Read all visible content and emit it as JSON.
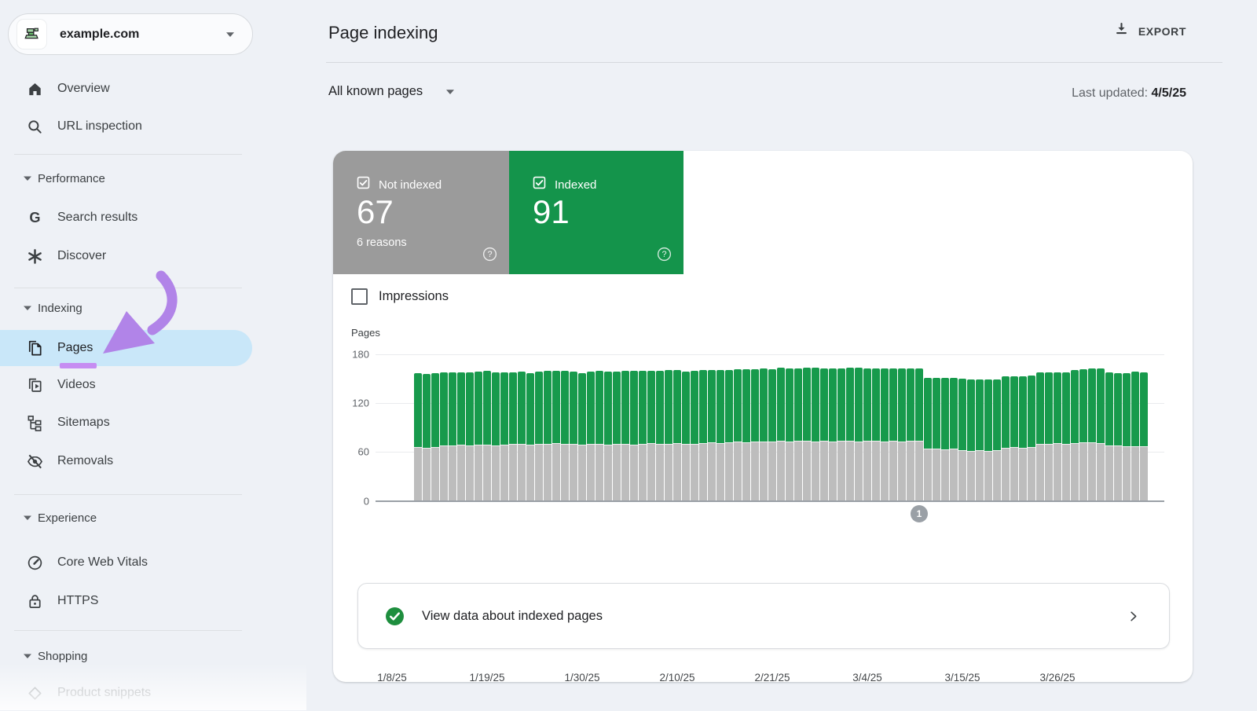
{
  "property": {
    "domain": "example.com",
    "favicon": "press-favicon-icon"
  },
  "sidebar": {
    "items": [
      {
        "type": "item",
        "label": "Overview",
        "icon": "home-icon"
      },
      {
        "type": "item",
        "label": "URL inspection",
        "icon": "search-icon"
      },
      {
        "type": "divider"
      },
      {
        "type": "section",
        "label": "Performance",
        "icon": "chevron-down-icon"
      },
      {
        "type": "item",
        "label": "Search results",
        "icon": "google-g-icon"
      },
      {
        "type": "item",
        "label": "Discover",
        "icon": "discover-icon"
      },
      {
        "type": "divider"
      },
      {
        "type": "section",
        "label": "Indexing",
        "icon": "chevron-down-icon"
      },
      {
        "type": "item",
        "label": "Pages",
        "icon": "pages-icon",
        "active": true,
        "underlined": true
      },
      {
        "type": "item",
        "label": "Videos",
        "icon": "videos-icon"
      },
      {
        "type": "item",
        "label": "Sitemaps",
        "icon": "sitemaps-icon"
      },
      {
        "type": "item",
        "label": "Removals",
        "icon": "removals-icon"
      },
      {
        "type": "divider"
      },
      {
        "type": "section",
        "label": "Experience",
        "icon": "chevron-down-icon"
      },
      {
        "type": "item",
        "label": "Core Web Vitals",
        "icon": "gauge-icon"
      },
      {
        "type": "item",
        "label": "HTTPS",
        "icon": "lock-icon"
      },
      {
        "type": "divider"
      },
      {
        "type": "section",
        "label": "Shopping",
        "icon": "chevron-down-icon"
      },
      {
        "type": "item",
        "label": "Product snippets",
        "icon": "diamond-icon",
        "faded": true
      }
    ]
  },
  "header": {
    "title": "Page indexing",
    "export_label": "EXPORT"
  },
  "filters": {
    "selected": "All known pages",
    "last_updated_label": "Last updated:",
    "last_updated_value": "4/5/25"
  },
  "summary_cards": [
    {
      "label": "Not indexed",
      "value": "67",
      "sub": "6 reasons",
      "color": "#9b9b9b"
    },
    {
      "label": "Indexed",
      "value": "91",
      "sub": "",
      "color": "#14944b"
    }
  ],
  "controls": {
    "impressions_label": "Impressions"
  },
  "chart_data": {
    "type": "bar",
    "stacked": true,
    "title": "",
    "ylabel": "Pages",
    "yticks": [
      0,
      60,
      120,
      180
    ],
    "ylim": [
      0,
      186
    ],
    "grid": "horizontal",
    "legend": "none",
    "x_range": {
      "start": "1/11/25",
      "end": "4/5/25",
      "points": 85
    },
    "xtick_labels": [
      "1/8/25",
      "1/19/25",
      "1/30/25",
      "2/10/25",
      "2/21/25",
      "3/4/25",
      "3/15/25",
      "3/26/25"
    ],
    "xtick_day_index": [
      -3,
      8,
      19,
      30,
      41,
      52,
      63,
      74
    ],
    "series": [
      {
        "name": "Not indexed",
        "color": "#bdbdbd",
        "values": [
          66,
          65,
          66,
          68,
          68,
          69,
          68,
          69,
          69,
          68,
          69,
          70,
          70,
          69,
          70,
          70,
          71,
          70,
          70,
          69,
          70,
          70,
          69,
          70,
          70,
          69,
          70,
          71,
          70,
          70,
          71,
          70,
          70,
          71,
          72,
          71,
          72,
          73,
          72,
          73,
          73,
          73,
          74,
          73,
          74,
          74,
          73,
          74,
          73,
          74,
          74,
          73,
          74,
          74,
          73,
          74,
          73,
          74,
          74,
          64,
          64,
          63,
          64,
          62,
          61,
          62,
          61,
          62,
          65,
          66,
          65,
          66,
          70,
          70,
          71,
          70,
          71,
          72,
          72,
          71,
          68,
          68,
          67,
          67,
          67
        ]
      },
      {
        "name": "Indexed",
        "color": "#179a4c",
        "values": [
          91,
          91,
          91,
          90,
          90,
          89,
          90,
          90,
          91,
          90,
          89,
          88,
          89,
          88,
          89,
          90,
          89,
          90,
          89,
          88,
          89,
          90,
          90,
          89,
          90,
          91,
          90,
          89,
          90,
          91,
          90,
          89,
          90,
          90,
          89,
          90,
          89,
          89,
          90,
          89,
          90,
          89,
          90,
          90,
          89,
          90,
          91,
          89,
          90,
          89,
          90,
          91,
          89,
          89,
          90,
          89,
          90,
          89,
          89,
          87,
          87,
          88,
          87,
          88,
          88,
          87,
          88,
          87,
          88,
          87,
          88,
          88,
          88,
          88,
          87,
          88,
          90,
          90,
          91,
          92,
          90,
          89,
          90,
          92,
          91
        ]
      }
    ],
    "annotation_marker": {
      "label": "1",
      "day_index": 58
    }
  },
  "footer_link": {
    "label": "View data about indexed pages"
  },
  "colors": {
    "page_background": "#eef1f6",
    "card_gray": "#9b9b9b",
    "card_green": "#14944b",
    "bar_gray": "#bdbdbd",
    "bar_green": "#179a4c",
    "highlight_blue": "#c9e7f9",
    "annotation_purple": "#b184e8",
    "underline_purple": "#c68df2",
    "check_circle_green": "#1e8e3e"
  }
}
